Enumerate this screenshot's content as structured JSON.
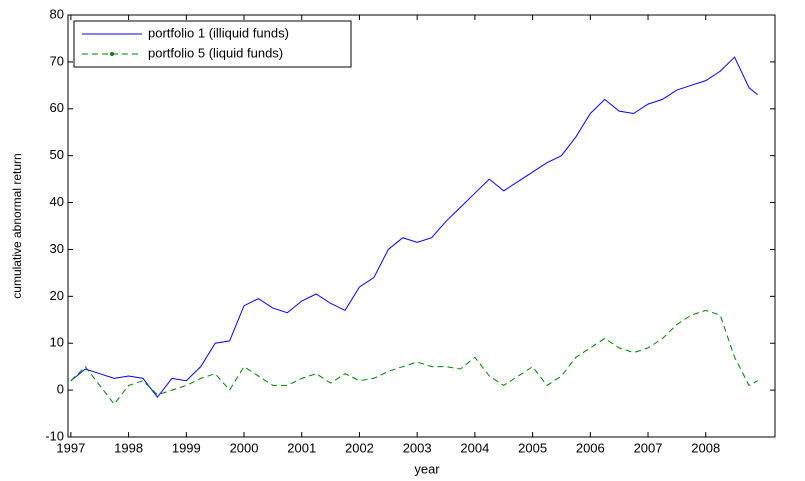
{
  "chart_data": {
    "type": "line",
    "x_label": "year",
    "y_label": "cumulative abnormal return",
    "x": [
      1997,
      1997.25,
      1997.5,
      1997.75,
      1998,
      1998.25,
      1998.5,
      1998.75,
      1999,
      1999.25,
      1999.5,
      1999.75,
      2000,
      2000.25,
      2000.5,
      2000.75,
      2001,
      2001.25,
      2001.5,
      2001.75,
      2002,
      2002.25,
      2002.5,
      2002.75,
      2003,
      2003.25,
      2003.5,
      2003.75,
      2004,
      2004.25,
      2004.5,
      2004.75,
      2005,
      2005.25,
      2005.5,
      2005.75,
      2006,
      2006.25,
      2006.5,
      2006.75,
      2007,
      2007.25,
      2007.5,
      2007.75,
      2008,
      2008.25,
      2008.5,
      2008.75,
      2008.9
    ],
    "series": [
      {
        "name": "portfolio 1 (illiquid  funds)",
        "color": "#0000ff",
        "dash": false,
        "marker": false,
        "values": [
          2,
          4.5,
          3.5,
          2.5,
          3,
          2.5,
          -1.5,
          2.5,
          2,
          5,
          10,
          10.5,
          18,
          19.5,
          17.5,
          16.5,
          19,
          20.5,
          18.5,
          17,
          22,
          24,
          30,
          32.5,
          31.5,
          32.5,
          36,
          39,
          42,
          45,
          42.5,
          44.5,
          46.5,
          48.5,
          50,
          54,
          59,
          62,
          59.5,
          59,
          61,
          62,
          64,
          65,
          66,
          68,
          71,
          64.5,
          63
        ]
      },
      {
        "name": "portfolio 5 (liquid funds)",
        "color": "#008000",
        "dash": true,
        "marker": true,
        "values": [
          2,
          5,
          1,
          -3,
          1,
          2,
          -1,
          0,
          1,
          2.5,
          3.5,
          0,
          5,
          3,
          1,
          1,
          2.5,
          3.5,
          1.5,
          3.5,
          2,
          2.5,
          4,
          5,
          6,
          5,
          5,
          4.5,
          7,
          3,
          1,
          3,
          5,
          1,
          3,
          7,
          9,
          11,
          9,
          8,
          9,
          11,
          14,
          16,
          17,
          16,
          7,
          1,
          2
        ]
      }
    ],
    "xlim": [
      1996.95,
      2009.2
    ],
    "xticks": [
      1997,
      1998,
      1999,
      2000,
      2001,
      2002,
      2003,
      2004,
      2005,
      2006,
      2007,
      2008
    ],
    "ylim": [
      -10,
      80
    ],
    "yticks": [
      -10,
      0,
      10,
      20,
      30,
      40,
      50,
      60,
      70,
      80
    ],
    "legend": "upper left",
    "grid": false
  }
}
